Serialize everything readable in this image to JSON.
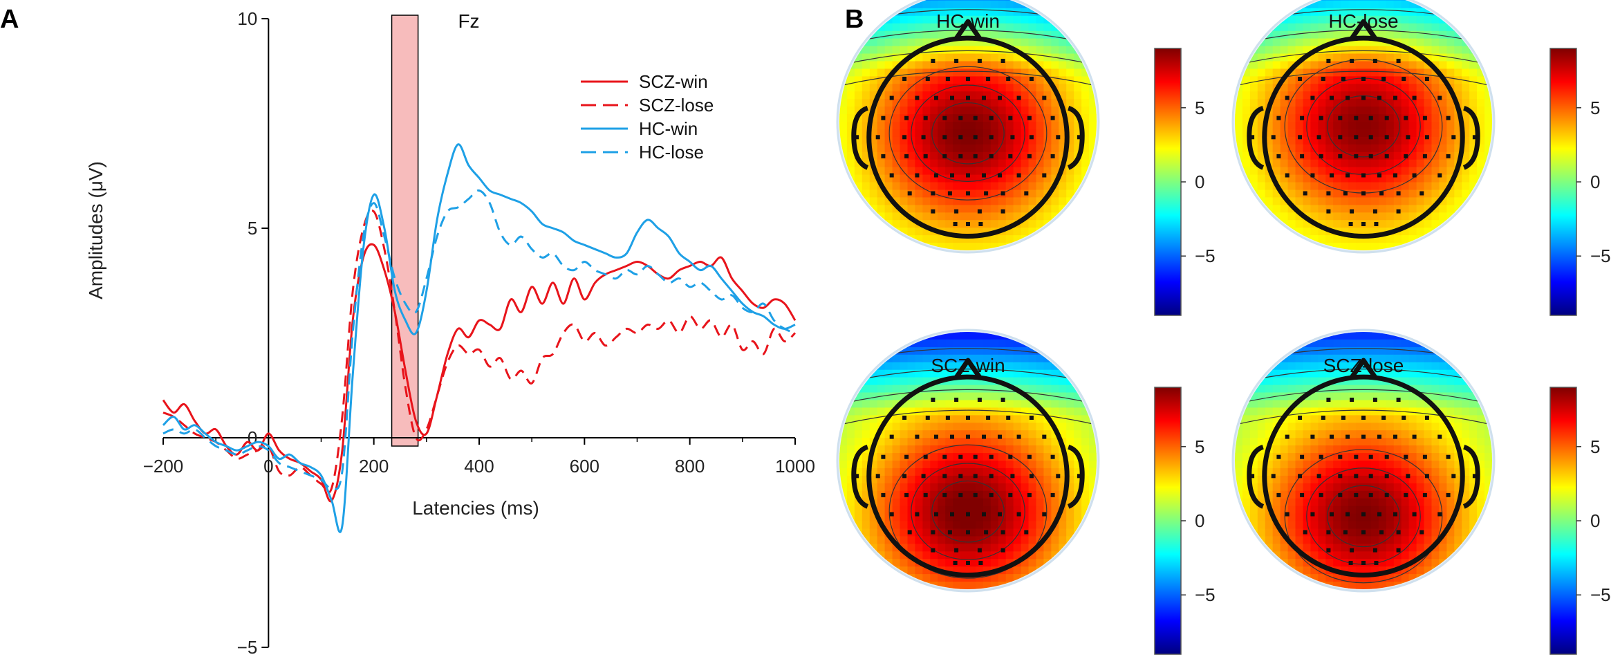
{
  "panels": {
    "a_label": "A",
    "b_label": "B"
  },
  "colors": {
    "scz": "#e8141b",
    "hc": "#1ea0e6",
    "window": "#f7bcbc",
    "axis": "#000000"
  },
  "chart_data": [
    {
      "type": "line",
      "title": "Fz",
      "xlabel": "Latencies (ms)",
      "ylabel": "Amplitudes (μV)",
      "xlim": [
        -200,
        1000
      ],
      "ylim": [
        -5,
        10
      ],
      "xticks": [
        "-200",
        "0",
        "200",
        "400",
        "600",
        "800",
        "1000"
      ],
      "xtick_values": [
        -200,
        0,
        200,
        400,
        600,
        800,
        1000
      ],
      "yticks": [
        "10",
        "5",
        "0",
        "-5"
      ],
      "ytick_values": [
        10,
        5,
        0,
        -5
      ],
      "legend_position": "top-right",
      "highlight_window_ms": [
        234,
        284
      ],
      "series": [
        {
          "name": "SCZ-win",
          "color": "#e8141b",
          "dash": "solid",
          "x": [
            -200,
            -180,
            -160,
            -140,
            -120,
            -100,
            -80,
            -60,
            -40,
            -20,
            0,
            20,
            40,
            60,
            80,
            100,
            120,
            140,
            160,
            180,
            200,
            220,
            240,
            260,
            280,
            300,
            320,
            340,
            360,
            380,
            400,
            420,
            440,
            460,
            480,
            500,
            520,
            540,
            560,
            580,
            600,
            620,
            640,
            660,
            680,
            700,
            720,
            740,
            760,
            780,
            800,
            820,
            840,
            860,
            880,
            900,
            920,
            940,
            960,
            980,
            1000
          ],
          "y": [
            0.9,
            0.6,
            0.8,
            0.4,
            0.1,
            0.2,
            -0.2,
            -0.4,
            -0.1,
            -0.3,
            0.1,
            -0.3,
            -0.5,
            -0.6,
            -0.8,
            -1.0,
            -1.5,
            -0.3,
            2.8,
            4.3,
            4.6,
            4.0,
            3.0,
            1.6,
            0.4,
            0.1,
            1.0,
            2.0,
            2.6,
            2.4,
            2.8,
            2.7,
            2.6,
            3.3,
            3.0,
            3.6,
            3.2,
            3.7,
            3.2,
            3.8,
            3.3,
            3.7,
            3.9,
            4.0,
            4.1,
            4.2,
            4.1,
            3.9,
            3.8,
            4.0,
            4.1,
            4.2,
            4.1,
            4.3,
            3.8,
            3.5,
            3.2,
            3.1,
            3.3,
            3.2,
            2.8
          ]
        },
        {
          "name": "SCZ-lose",
          "color": "#e8141b",
          "dash": "dashed",
          "x": [
            -200,
            -180,
            -160,
            -140,
            -120,
            -100,
            -80,
            -60,
            -40,
            -20,
            0,
            20,
            40,
            60,
            80,
            100,
            120,
            140,
            160,
            180,
            200,
            220,
            240,
            260,
            280,
            300,
            320,
            340,
            360,
            380,
            400,
            420,
            440,
            460,
            480,
            500,
            520,
            540,
            560,
            580,
            600,
            620,
            640,
            660,
            680,
            700,
            720,
            740,
            760,
            780,
            800,
            820,
            840,
            860,
            880,
            900,
            920,
            940,
            960,
            980,
            1000
          ],
          "y": [
            0.6,
            0.5,
            0.3,
            0.1,
            0.0,
            -0.1,
            -0.3,
            -0.5,
            -0.4,
            -0.3,
            -0.2,
            -0.8,
            -0.9,
            -0.7,
            -0.9,
            -1.1,
            -1.2,
            0.5,
            3.5,
            5.0,
            5.4,
            4.5,
            3.0,
            1.2,
            0.0,
            0.2,
            1.0,
            1.8,
            2.2,
            2.0,
            2.1,
            1.7,
            1.9,
            1.4,
            1.6,
            1.3,
            1.9,
            2.0,
            2.5,
            2.7,
            2.3,
            2.5,
            2.2,
            2.4,
            2.6,
            2.5,
            2.7,
            2.6,
            2.8,
            2.5,
            2.9,
            2.6,
            2.8,
            2.4,
            2.7,
            2.1,
            2.3,
            2.0,
            2.6,
            2.3,
            2.5
          ]
        },
        {
          "name": "HC-win",
          "color": "#1ea0e6",
          "dash": "solid",
          "x": [
            -200,
            -180,
            -160,
            -140,
            -120,
            -100,
            -80,
            -60,
            -40,
            -20,
            0,
            20,
            40,
            60,
            80,
            100,
            120,
            140,
            160,
            180,
            200,
            220,
            240,
            260,
            280,
            300,
            320,
            340,
            360,
            380,
            400,
            420,
            440,
            460,
            480,
            500,
            520,
            540,
            560,
            580,
            600,
            620,
            640,
            660,
            680,
            700,
            720,
            740,
            760,
            780,
            800,
            820,
            840,
            860,
            880,
            900,
            920,
            940,
            960,
            980,
            1000
          ],
          "y": [
            0.3,
            0.5,
            0.2,
            0.3,
            0.1,
            -0.1,
            -0.2,
            -0.3,
            -0.2,
            -0.1,
            -0.2,
            -0.5,
            -0.4,
            -0.6,
            -0.7,
            -0.9,
            -1.5,
            -2.1,
            1.5,
            4.5,
            5.8,
            5.0,
            3.5,
            2.8,
            2.5,
            3.5,
            5.2,
            6.3,
            7.0,
            6.5,
            6.2,
            5.9,
            5.8,
            5.7,
            5.6,
            5.4,
            5.1,
            5.0,
            4.9,
            4.7,
            4.6,
            4.5,
            4.4,
            4.3,
            4.4,
            4.9,
            5.2,
            5.0,
            4.8,
            4.4,
            4.2,
            4.0,
            4.1,
            3.8,
            3.5,
            3.2,
            3.0,
            2.9,
            2.7,
            2.6,
            2.7
          ]
        },
        {
          "name": "HC-lose",
          "color": "#1ea0e6",
          "dash": "dashed",
          "x": [
            -200,
            -180,
            -160,
            -140,
            -120,
            -100,
            -80,
            -60,
            -40,
            -20,
            0,
            20,
            40,
            60,
            80,
            100,
            120,
            140,
            160,
            180,
            200,
            220,
            240,
            260,
            280,
            300,
            320,
            340,
            360,
            380,
            400,
            420,
            440,
            460,
            480,
            500,
            520,
            540,
            560,
            580,
            600,
            620,
            640,
            660,
            680,
            700,
            720,
            740,
            760,
            780,
            800,
            820,
            840,
            860,
            880,
            900,
            920,
            940,
            960,
            980,
            1000
          ],
          "y": [
            0.1,
            0.2,
            0.1,
            0.2,
            0.0,
            -0.2,
            -0.3,
            -0.4,
            -0.3,
            -0.2,
            -0.3,
            -0.6,
            -0.7,
            -0.8,
            -0.9,
            -1.0,
            -1.2,
            -0.8,
            2.5,
            4.8,
            5.6,
            4.8,
            3.8,
            3.2,
            3.0,
            3.8,
            4.8,
            5.4,
            5.5,
            5.7,
            5.9,
            5.6,
            4.9,
            4.6,
            4.8,
            4.5,
            4.3,
            4.4,
            4.1,
            4.0,
            4.2,
            4.0,
            3.9,
            3.8,
            4.0,
            3.9,
            4.1,
            3.9,
            3.7,
            3.8,
            3.6,
            3.7,
            3.5,
            3.3,
            3.4,
            3.1,
            3.0,
            3.2,
            2.8,
            2.6,
            2.5
          ]
        }
      ]
    },
    {
      "type": "heatmap",
      "subtype": "scalp-topography",
      "colorscale": "jet",
      "colorbar_ticks": [
        "5",
        "0",
        "-5"
      ],
      "colorbar_tick_values": [
        5,
        0,
        -5
      ],
      "colorbar_range": [
        -9,
        9
      ],
      "maps": [
        {
          "title": "HC-win",
          "peak": 8.0,
          "peak_y": 0.55,
          "front_min": -6.0
        },
        {
          "title": "HC-lose",
          "peak": 7.8,
          "peak_y": 0.52,
          "front_min": -5.5
        },
        {
          "title": "SCZ-win",
          "peak": 8.2,
          "peak_y": 0.72,
          "front_min": -7.5
        },
        {
          "title": "SCZ-lose",
          "peak": 8.0,
          "peak_y": 0.74,
          "front_min": -7.0
        }
      ]
    }
  ]
}
